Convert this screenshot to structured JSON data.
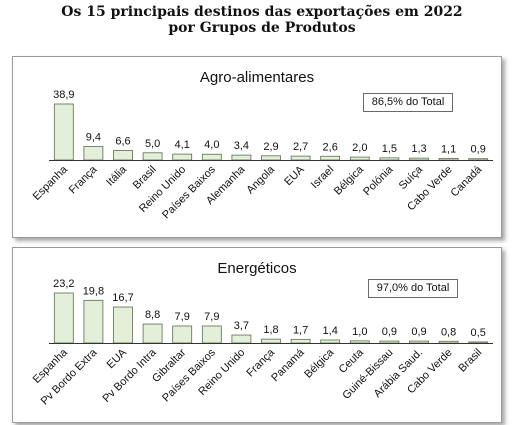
{
  "title_line1": "Os 15 principais destinos das exportações em 2022",
  "title_line2": "por Grupos de Produtos",
  "colors": {
    "bar_fill": "#e3efd9",
    "bar_stroke": "#5b6e4d",
    "axis": "#333333"
  },
  "chart_data": [
    {
      "type": "bar",
      "title": "Agro-alimentares",
      "annotation": "86,5% do Total",
      "categories": [
        "Espanha",
        "França",
        "Itália",
        "Brasil",
        "Reino Unido",
        "Países Baixos",
        "Alemanha",
        "Angola",
        "EUA",
        "Israel",
        "Bélgica",
        "Polónia",
        "Suíça",
        "Cabo Verde",
        "Canadá"
      ],
      "values": [
        38.9,
        9.4,
        6.6,
        5.0,
        4.1,
        4.0,
        3.4,
        2.9,
        2.7,
        2.6,
        2.0,
        1.5,
        1.3,
        1.1,
        0.9
      ],
      "data_labels": [
        "38,9",
        "9,4",
        "6,6",
        "5,0",
        "4,1",
        "4,0",
        "3,4",
        "2,9",
        "2,7",
        "2,6",
        "2,0",
        "1,5",
        "1,3",
        "1,1",
        "0,9"
      ],
      "xlabel": "",
      "ylabel": "",
      "ylim": [
        0,
        38.9
      ],
      "grid": false
    },
    {
      "type": "bar",
      "title": "Energéticos",
      "annotation": "97,0% do Total",
      "categories": [
        "Espanha",
        "Pv Bordo Extra",
        "EUA",
        "Pv Bordo Intra",
        "Gibraltar",
        "Países Baixos",
        "Reino Unido",
        "França",
        "Panamá",
        "Bélgica",
        "Ceuta",
        "Guiné-Bissau",
        "Arábia Saud.",
        "Cabo Verde",
        "Brasil"
      ],
      "values": [
        23.2,
        19.8,
        16.7,
        8.8,
        7.9,
        7.9,
        3.7,
        1.8,
        1.7,
        1.4,
        1.0,
        0.9,
        0.9,
        0.8,
        0.5
      ],
      "data_labels": [
        "23,2",
        "19,8",
        "16,7",
        "8,8",
        "7,9",
        "7,9",
        "3,7",
        "1,8",
        "1,7",
        "1,4",
        "1,0",
        "0,9",
        "0,9",
        "0,8",
        "0,5"
      ],
      "xlabel": "",
      "ylabel": "",
      "ylim": [
        0,
        23.2
      ],
      "grid": false
    }
  ]
}
